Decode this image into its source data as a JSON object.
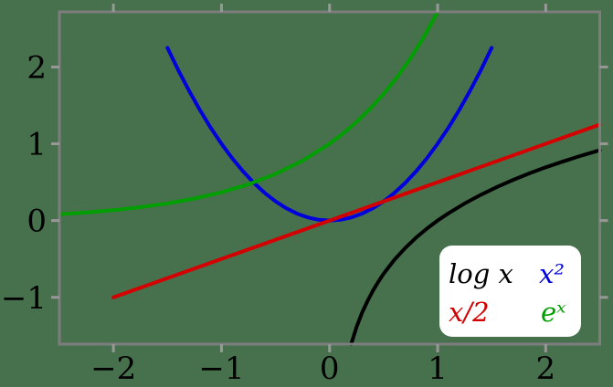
{
  "chart_data": {
    "type": "line",
    "title": "",
    "xlabel": "",
    "ylabel": "",
    "grid": false,
    "background_color": "#47714d",
    "frame_color": "#7d7d7d",
    "tick_color": "#989898",
    "tick_label_color": "#000000",
    "xlim": [
      -2.5,
      2.5
    ],
    "ylim": [
      -1.609,
      2.718
    ],
    "xticks": [
      -2,
      -1,
      0,
      1,
      2
    ],
    "yticks": [
      -1,
      0,
      1,
      2
    ],
    "xtick_labels": [
      "−2",
      "−1",
      "0",
      "1",
      "2"
    ],
    "ytick_labels": [
      "−1",
      "0",
      "1",
      "2"
    ],
    "ticks_mirrored_top_right": true,
    "legend": {
      "position": "lower right",
      "background": "#ffffff",
      "entries": [
        {
          "label": "log x",
          "color": "#000000"
        },
        {
          "label": "x²",
          "color": "#0000dd"
        },
        {
          "label": "x/2",
          "color": "#d40000"
        },
        {
          "label": "eˣ",
          "color": "#009e00"
        }
      ]
    },
    "series": [
      {
        "name": "x²",
        "color": "#0000dd",
        "linewidth": 4,
        "points": [
          [
            -1.5,
            2.25
          ],
          [
            -1.4,
            1.96
          ],
          [
            -1.3,
            1.69
          ],
          [
            -1.2,
            1.44
          ],
          [
            -1.1,
            1.21
          ],
          [
            -1.0,
            1.0
          ],
          [
            -0.9,
            0.81
          ],
          [
            -0.8,
            0.64
          ],
          [
            -0.7,
            0.49
          ],
          [
            -0.6,
            0.36
          ],
          [
            -0.5,
            0.25
          ],
          [
            -0.4,
            0.16
          ],
          [
            -0.3,
            0.09
          ],
          [
            -0.2,
            0.04
          ],
          [
            -0.1,
            0.01
          ],
          [
            0,
            0
          ],
          [
            0.1,
            0.01
          ],
          [
            0.2,
            0.04
          ],
          [
            0.3,
            0.09
          ],
          [
            0.4,
            0.16
          ],
          [
            0.5,
            0.25
          ],
          [
            0.6,
            0.36
          ],
          [
            0.7,
            0.49
          ],
          [
            0.8,
            0.64
          ],
          [
            0.9,
            0.81
          ],
          [
            1.0,
            1.0
          ],
          [
            1.1,
            1.21
          ],
          [
            1.2,
            1.44
          ],
          [
            1.3,
            1.69
          ],
          [
            1.4,
            1.96
          ],
          [
            1.5,
            2.25
          ]
        ]
      },
      {
        "name": "eˣ",
        "color": "#009e00",
        "linewidth": 4,
        "points": [
          [
            -2.5,
            0.082
          ],
          [
            -2.25,
            0.105
          ],
          [
            -2.0,
            0.135
          ],
          [
            -1.75,
            0.174
          ],
          [
            -1.5,
            0.223
          ],
          [
            -1.25,
            0.287
          ],
          [
            -1.0,
            0.368
          ],
          [
            -0.75,
            0.472
          ],
          [
            -0.5,
            0.607
          ],
          [
            -0.25,
            0.779
          ],
          [
            0,
            1.0
          ],
          [
            0.125,
            1.133
          ],
          [
            0.25,
            1.284
          ],
          [
            0.375,
            1.455
          ],
          [
            0.5,
            1.649
          ],
          [
            0.625,
            1.868
          ],
          [
            0.75,
            2.117
          ],
          [
            0.875,
            2.399
          ],
          [
            1.0,
            2.718
          ]
        ]
      },
      {
        "name": "log x",
        "color": "#000000",
        "linewidth": 4,
        "points": [
          [
            0.2,
            -1.609
          ],
          [
            0.25,
            -1.386
          ],
          [
            0.3,
            -1.204
          ],
          [
            0.35,
            -1.05
          ],
          [
            0.4,
            -0.916
          ],
          [
            0.45,
            -0.799
          ],
          [
            0.5,
            -0.693
          ],
          [
            0.6,
            -0.511
          ],
          [
            0.7,
            -0.357
          ],
          [
            0.8,
            -0.223
          ],
          [
            0.9,
            -0.105
          ],
          [
            1.0,
            0
          ],
          [
            1.1,
            0.095
          ],
          [
            1.25,
            0.223
          ],
          [
            1.4,
            0.336
          ],
          [
            1.55,
            0.438
          ],
          [
            1.7,
            0.531
          ],
          [
            1.85,
            0.615
          ],
          [
            2.0,
            0.693
          ],
          [
            2.15,
            0.765
          ],
          [
            2.3,
            0.833
          ],
          [
            2.5,
            0.916
          ]
        ]
      },
      {
        "name": "x/2",
        "color": "#d40000",
        "linewidth": 4,
        "points": [
          [
            -2.0,
            -1.0
          ],
          [
            2.5,
            1.25
          ]
        ]
      }
    ]
  }
}
